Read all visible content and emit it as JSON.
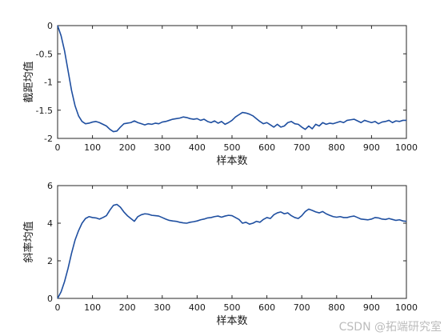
{
  "chart_data": [
    {
      "type": "line",
      "xlabel": "样本数",
      "ylabel": "截距均值",
      "xlim": [
        0,
        1000
      ],
      "ylim": [
        -2,
        0
      ],
      "xticks": [
        0,
        100,
        200,
        300,
        400,
        500,
        600,
        700,
        800,
        900,
        1000
      ],
      "yticks": [
        -2,
        -1.5,
        -1,
        -0.5,
        0
      ],
      "ytick_labels": [
        "-2",
        "-1.5",
        "-1",
        "-0.5",
        "0"
      ],
      "color": "#1f4fa0",
      "grid": false,
      "x": [
        0,
        10,
        20,
        30,
        40,
        50,
        60,
        70,
        80,
        90,
        100,
        110,
        120,
        130,
        140,
        150,
        160,
        170,
        180,
        190,
        200,
        210,
        220,
        230,
        240,
        250,
        260,
        270,
        280,
        290,
        300,
        310,
        320,
        330,
        340,
        350,
        360,
        370,
        380,
        390,
        400,
        410,
        420,
        430,
        440,
        450,
        460,
        470,
        480,
        490,
        500,
        510,
        520,
        530,
        540,
        550,
        560,
        570,
        580,
        590,
        600,
        610,
        620,
        630,
        640,
        650,
        660,
        670,
        680,
        690,
        700,
        710,
        720,
        730,
        740,
        750,
        760,
        770,
        780,
        790,
        800,
        810,
        820,
        830,
        840,
        850,
        860,
        870,
        880,
        890,
        900,
        910,
        920,
        930,
        940,
        950,
        960,
        970,
        980,
        990,
        1000
      ],
      "y": [
        0,
        -0.18,
        -0.45,
        -0.8,
        -1.15,
        -1.42,
        -1.6,
        -1.7,
        -1.74,
        -1.73,
        -1.71,
        -1.7,
        -1.72,
        -1.75,
        -1.78,
        -1.84,
        -1.88,
        -1.87,
        -1.8,
        -1.74,
        -1.73,
        -1.72,
        -1.69,
        -1.72,
        -1.74,
        -1.76,
        -1.74,
        -1.75,
        -1.73,
        -1.74,
        -1.71,
        -1.7,
        -1.68,
        -1.66,
        -1.65,
        -1.64,
        -1.62,
        -1.63,
        -1.65,
        -1.66,
        -1.65,
        -1.68,
        -1.66,
        -1.7,
        -1.72,
        -1.69,
        -1.73,
        -1.7,
        -1.75,
        -1.72,
        -1.68,
        -1.62,
        -1.58,
        -1.54,
        -1.55,
        -1.57,
        -1.6,
        -1.65,
        -1.7,
        -1.74,
        -1.72,
        -1.76,
        -1.8,
        -1.75,
        -1.8,
        -1.78,
        -1.72,
        -1.7,
        -1.74,
        -1.75,
        -1.8,
        -1.84,
        -1.78,
        -1.83,
        -1.75,
        -1.78,
        -1.72,
        -1.75,
        -1.73,
        -1.74,
        -1.72,
        -1.7,
        -1.72,
        -1.68,
        -1.67,
        -1.66,
        -1.69,
        -1.72,
        -1.68,
        -1.7,
        -1.72,
        -1.7,
        -1.74,
        -1.71,
        -1.7,
        -1.68,
        -1.72,
        -1.69,
        -1.7,
        -1.68,
        -1.68
      ]
    },
    {
      "type": "line",
      "xlabel": "样本数",
      "ylabel": "斜率均值",
      "xlim": [
        0,
        1000
      ],
      "ylim": [
        0,
        6
      ],
      "xticks": [
        0,
        100,
        200,
        300,
        400,
        500,
        600,
        700,
        800,
        900,
        1000
      ],
      "yticks": [
        0,
        2,
        4,
        6
      ],
      "ytick_labels": [
        "0",
        "2",
        "4",
        "6"
      ],
      "color": "#1f4fa0",
      "grid": false,
      "x": [
        0,
        10,
        20,
        30,
        40,
        50,
        60,
        70,
        80,
        90,
        100,
        110,
        120,
        130,
        140,
        150,
        160,
        170,
        180,
        190,
        200,
        210,
        220,
        230,
        240,
        250,
        260,
        270,
        280,
        290,
        300,
        310,
        320,
        330,
        340,
        350,
        360,
        370,
        380,
        390,
        400,
        410,
        420,
        430,
        440,
        450,
        460,
        470,
        480,
        490,
        500,
        510,
        520,
        530,
        540,
        550,
        560,
        570,
        580,
        590,
        600,
        610,
        620,
        630,
        640,
        650,
        660,
        670,
        680,
        690,
        700,
        710,
        720,
        730,
        740,
        750,
        760,
        770,
        780,
        790,
        800,
        810,
        820,
        830,
        840,
        850,
        860,
        870,
        880,
        890,
        900,
        910,
        920,
        930,
        940,
        950,
        960,
        970,
        980,
        990,
        1000
      ],
      "y": [
        0,
        0.35,
        0.9,
        1.6,
        2.4,
        3.1,
        3.6,
        4.0,
        4.25,
        4.35,
        4.3,
        4.28,
        4.22,
        4.3,
        4.4,
        4.7,
        4.95,
        5.0,
        4.85,
        4.6,
        4.4,
        4.25,
        4.1,
        4.35,
        4.45,
        4.5,
        4.48,
        4.42,
        4.4,
        4.38,
        4.3,
        4.22,
        4.15,
        4.12,
        4.1,
        4.05,
        4.02,
        4.0,
        4.05,
        4.08,
        4.12,
        4.18,
        4.22,
        4.28,
        4.3,
        4.35,
        4.38,
        4.32,
        4.38,
        4.42,
        4.4,
        4.3,
        4.2,
        4.0,
        4.05,
        3.95,
        4.0,
        4.1,
        4.05,
        4.2,
        4.3,
        4.25,
        4.45,
        4.55,
        4.6,
        4.5,
        4.55,
        4.4,
        4.3,
        4.25,
        4.4,
        4.62,
        4.75,
        4.68,
        4.6,
        4.55,
        4.62,
        4.5,
        4.42,
        4.35,
        4.32,
        4.35,
        4.3,
        4.3,
        4.35,
        4.38,
        4.3,
        4.22,
        4.2,
        4.18,
        4.22,
        4.3,
        4.28,
        4.22,
        4.2,
        4.25,
        4.2,
        4.15,
        4.18,
        4.12,
        4.1
      ]
    }
  ],
  "watermark": "CSDN @拓端研究室"
}
